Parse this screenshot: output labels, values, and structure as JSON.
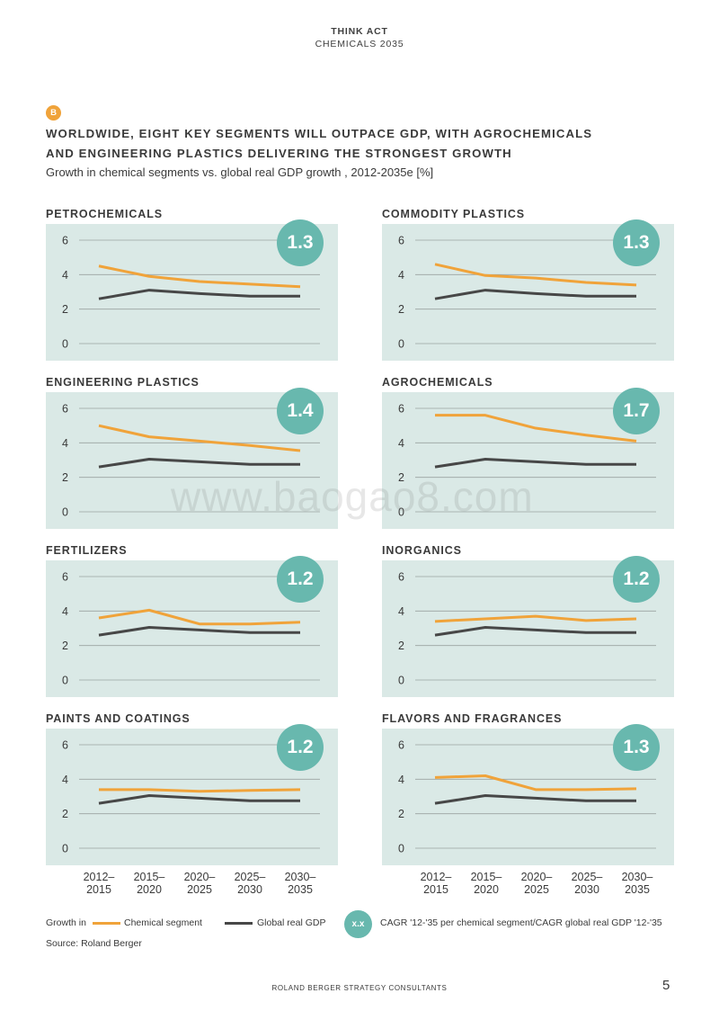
{
  "header": {
    "brand": "THINK ACT",
    "sub": "CHEMICALS 2035"
  },
  "section_badge": "B",
  "title_line1": "WORLDWIDE, EIGHT KEY SEGMENTS WILL OUTPACE GDP, WITH AGROCHEMICALS",
  "title_line2": "AND ENGINEERING PLASTICS DELIVERING THE STRONGEST GROWTH",
  "subtitle": "Growth in chemical segments vs. global real GDP growth , 2012-2035e [%]",
  "colors": {
    "panel_bg": "#dae9e6",
    "chemical": "#f0a33a",
    "gdp": "#474747",
    "ratio_circle": "#68b8ae",
    "badge": "#f0a33a"
  },
  "chart_data": [
    {
      "type": "line",
      "title": "PETROCHEMICALS",
      "ratio": "1.3",
      "categories": [
        "2012–2015",
        "2015–2020",
        "2020–2025",
        "2025–2030",
        "2030–2035"
      ],
      "ylim": [
        0,
        6
      ],
      "yticks": [
        "0",
        "2",
        "4",
        "6"
      ],
      "series": [
        {
          "name": "Chemical segment",
          "values": [
            4.5,
            3.9,
            3.6,
            3.45,
            3.3
          ]
        },
        {
          "name": "Global real GDP",
          "values": [
            2.6,
            3.1,
            2.9,
            2.75,
            2.75
          ]
        }
      ]
    },
    {
      "type": "line",
      "title": "COMMODITY PLASTICS",
      "ratio": "1.3",
      "categories": [
        "2012–2015",
        "2015–2020",
        "2020–2025",
        "2025–2030",
        "2030–2035"
      ],
      "ylim": [
        0,
        6
      ],
      "yticks": [
        "0",
        "2",
        "4",
        "6"
      ],
      "series": [
        {
          "name": "Chemical segment",
          "values": [
            4.6,
            3.95,
            3.8,
            3.55,
            3.4
          ]
        },
        {
          "name": "Global real GDP",
          "values": [
            2.6,
            3.1,
            2.9,
            2.75,
            2.75
          ]
        }
      ]
    },
    {
      "type": "line",
      "title": "ENGINEERING PLASTICS",
      "ratio": "1.4",
      "categories": [
        "2012–2015",
        "2015–2020",
        "2020–2025",
        "2025–2030",
        "2030–2035"
      ],
      "ylim": [
        0,
        6
      ],
      "yticks": [
        "0",
        "2",
        "4",
        "6"
      ],
      "series": [
        {
          "name": "Chemical segment",
          "values": [
            5.0,
            4.35,
            4.1,
            3.85,
            3.55
          ]
        },
        {
          "name": "Global real GDP",
          "values": [
            2.6,
            3.05,
            2.9,
            2.75,
            2.75
          ]
        }
      ]
    },
    {
      "type": "line",
      "title": "AGROCHEMICALS",
      "ratio": "1.7",
      "categories": [
        "2012–2015",
        "2015–2020",
        "2020–2025",
        "2025–2030",
        "2030–2035"
      ],
      "ylim": [
        0,
        6
      ],
      "yticks": [
        "0",
        "2",
        "4",
        "6"
      ],
      "series": [
        {
          "name": "Chemical segment",
          "values": [
            5.6,
            5.6,
            4.85,
            4.45,
            4.1
          ]
        },
        {
          "name": "Global real GDP",
          "values": [
            2.6,
            3.05,
            2.9,
            2.75,
            2.75
          ]
        }
      ]
    },
    {
      "type": "line",
      "title": "FERTILIZERS",
      "ratio": "1.2",
      "categories": [
        "2012–2015",
        "2015–2020",
        "2020–2025",
        "2025–2030",
        "2030–2035"
      ],
      "ylim": [
        0,
        6
      ],
      "yticks": [
        "0",
        "2",
        "4",
        "6"
      ],
      "series": [
        {
          "name": "Chemical segment",
          "values": [
            3.6,
            4.05,
            3.25,
            3.25,
            3.35
          ]
        },
        {
          "name": "Global real GDP",
          "values": [
            2.6,
            3.05,
            2.9,
            2.75,
            2.75
          ]
        }
      ]
    },
    {
      "type": "line",
      "title": "INORGANICS",
      "ratio": "1.2",
      "categories": [
        "2012–2015",
        "2015–2020",
        "2020–2025",
        "2025–2030",
        "2030–2035"
      ],
      "ylim": [
        0,
        6
      ],
      "yticks": [
        "0",
        "2",
        "4",
        "6"
      ],
      "series": [
        {
          "name": "Chemical segment",
          "values": [
            3.4,
            3.55,
            3.7,
            3.45,
            3.55
          ]
        },
        {
          "name": "Global real GDP",
          "values": [
            2.6,
            3.05,
            2.9,
            2.75,
            2.75
          ]
        }
      ]
    },
    {
      "type": "line",
      "title": "PAINTS AND COATINGS",
      "ratio": "1.2",
      "categories": [
        "2012–2015",
        "2015–2020",
        "2020–2025",
        "2025–2030",
        "2030–2035"
      ],
      "ylim": [
        0,
        6
      ],
      "yticks": [
        "0",
        "2",
        "4",
        "6"
      ],
      "series": [
        {
          "name": "Chemical segment",
          "values": [
            3.4,
            3.4,
            3.3,
            3.35,
            3.4
          ]
        },
        {
          "name": "Global real GDP",
          "values": [
            2.6,
            3.05,
            2.9,
            2.75,
            2.75
          ]
        }
      ]
    },
    {
      "type": "line",
      "title": "FLAVORS AND FRAGRANCES",
      "ratio": "1.3",
      "categories": [
        "2012–2015",
        "2015–2020",
        "2020–2025",
        "2025–2030",
        "2030–2035"
      ],
      "ylim": [
        0,
        6
      ],
      "yticks": [
        "0",
        "2",
        "4",
        "6"
      ],
      "series": [
        {
          "name": "Chemical segment",
          "values": [
            4.1,
            4.2,
            3.4,
            3.4,
            3.45
          ]
        },
        {
          "name": "Global real GDP",
          "values": [
            2.6,
            3.05,
            2.9,
            2.75,
            2.75
          ]
        }
      ]
    }
  ],
  "xaxis": {
    "left": [
      {
        "l1": "2012–",
        "l2": "2015"
      },
      {
        "l1": "2015–",
        "l2": "2020"
      },
      {
        "l1": "2020–",
        "l2": "2025"
      },
      {
        "l1": "2025–",
        "l2": "2030"
      },
      {
        "l1": "2030–",
        "l2": "2035"
      }
    ],
    "right": [
      {
        "l1": "2012–",
        "l2": "2015"
      },
      {
        "l1": "2015–",
        "l2": "2020"
      },
      {
        "l1": "2020–",
        "l2": "2025"
      },
      {
        "l1": "2025–",
        "l2": "2030"
      },
      {
        "l1": "2030–",
        "l2": "2035"
      }
    ]
  },
  "legend": {
    "prefix": "Growth in",
    "chemical": "Chemical segment",
    "gdp": "Global real GDP",
    "badge": "x.x",
    "badge_text": "CAGR '12-'35 per chemical segment/CAGR global real GDP '12-'35"
  },
  "source": "Source: Roland Berger",
  "watermark": "www.baogao8.com",
  "footer": "ROLAND BERGER STRATEGY CONSULTANTS",
  "page_number": "5"
}
